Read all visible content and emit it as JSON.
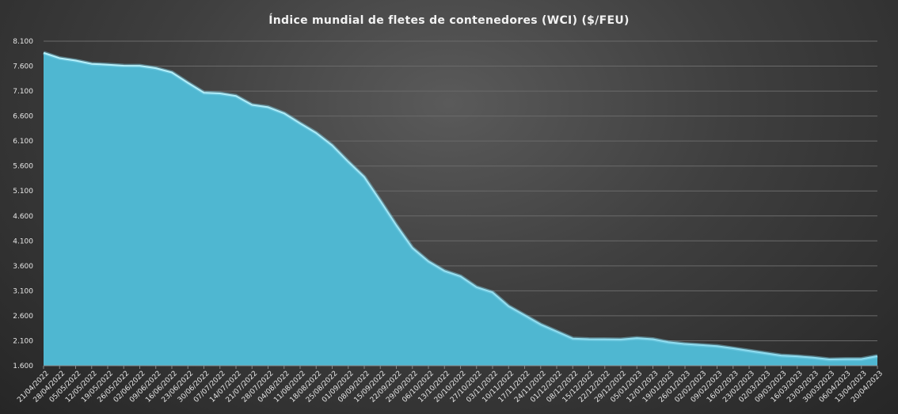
{
  "chart_data": {
    "type": "area",
    "title": "Índice mundial de fletes de contenedores (WCI) ($/FEU)",
    "xlabel": "",
    "ylabel": "",
    "ylim": [
      1600,
      8100
    ],
    "yticks": [
      1600,
      2100,
      2600,
      3100,
      3600,
      4100,
      4600,
      5100,
      5600,
      6100,
      6600,
      7100,
      7600,
      8100
    ],
    "ytick_labels": [
      "1.600",
      "2.100",
      "2.600",
      "3.100",
      "3.600",
      "4.100",
      "4.600",
      "5.100",
      "5.600",
      "6.100",
      "6.600",
      "7.100",
      "7.600",
      "8.100"
    ],
    "grid": true,
    "legend": "none",
    "colors": {
      "fill": "#4fb7d1",
      "line": "#9fe6f7",
      "grid": "#6a6a6a",
      "text": "#e6e6e6"
    },
    "categories": [
      "21/04/2022",
      "28/04/2022",
      "05/05/2022",
      "12/05/2022",
      "19/05/2022",
      "26/05/2022",
      "02/06/2022",
      "09/06/2022",
      "16/06/2022",
      "23/06/2022",
      "30/06/2022",
      "07/07/2022",
      "14/07/2022",
      "21/07/2022",
      "28/07/2022",
      "04/08/2022",
      "11/08/2022",
      "18/08/2022",
      "25/08/2022",
      "01/09/2022",
      "08/09/2022",
      "15/09/2022",
      "22/09/2022",
      "29/09/2022",
      "06/10/2022",
      "13/10/2022",
      "20/10/2022",
      "27/10/2022",
      "03/11/2022",
      "10/11/2022",
      "17/11/2022",
      "24/11/2022",
      "01/12/2022",
      "08/12/2022",
      "15/12/2022",
      "22/12/2022",
      "29/12/2022",
      "05/01/2023",
      "12/01/2023",
      "19/01/2023",
      "26/01/2023",
      "02/02/2023",
      "09/02/2023",
      "16/02/2023",
      "23/02/2023",
      "02/03/2023",
      "09/03/2023",
      "16/03/2023",
      "23/03/2023",
      "30/03/2023",
      "06/04/2023",
      "13/04/2023",
      "20/04/2023"
    ],
    "values": [
      7866,
      7760,
      7711,
      7645,
      7629,
      7609,
      7607,
      7559,
      7474,
      7266,
      7067,
      7054,
      7002,
      6823,
      6778,
      6655,
      6453,
      6261,
      6012,
      5686,
      5379,
      4903,
      4412,
      3959,
      3689,
      3498,
      3390,
      3173,
      3069,
      2791,
      2610,
      2426,
      2286,
      2144,
      2132,
      2130,
      2125,
      2153,
      2131,
      2069,
      2035,
      2015,
      1992,
      1948,
      1899,
      1852,
      1804,
      1788,
      1762,
      1727,
      1732,
      1733,
      1793
    ]
  }
}
